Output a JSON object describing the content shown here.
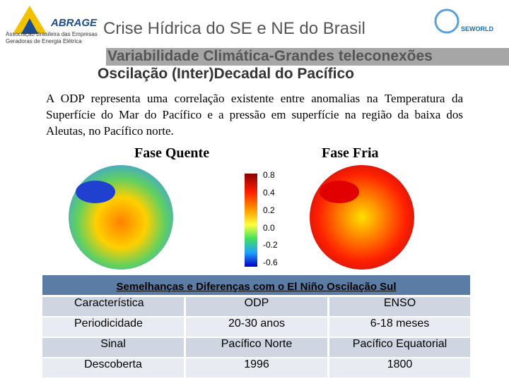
{
  "header": {
    "logo_name": "ABRAGE",
    "logo_caption": "Associação Brasileira das Empresas Geradoras de Energia Elétrica",
    "title": "Crise Hídrica do SE e NE do Brasil",
    "partner_logo": "SEWORLD"
  },
  "section": "Variabilidade Climática-Grandes teleconexões",
  "subtitle": "Oscilação (Inter)Decadal do Pacífico",
  "paragraph": "A ODP representa uma correlação existente entre anomalias na Temperatura da Superfície do Mar do Pacífico e a pressão em superfície na região da baixa dos Aleutas, no Pacífico norte.",
  "figure": {
    "left_label": "Fase Quente",
    "right_label": "Fase Fria",
    "colorbar_labels": [
      "0.8",
      "0.4",
      "0.2",
      "0.0",
      "-0.2",
      "-0.6"
    ]
  },
  "table": {
    "caption": "Semelhanças e Diferenças com o El Niño Oscilação Sul",
    "rows": [
      [
        "Característica",
        "ODP",
        "ENSO"
      ],
      [
        "Periodicidade",
        "20-30 anos",
        "6-18 meses"
      ],
      [
        "Sinal",
        "Pacífico Norte",
        "Pacífico Equatorial"
      ],
      [
        "Descoberta",
        "1996",
        "1800"
      ]
    ]
  }
}
